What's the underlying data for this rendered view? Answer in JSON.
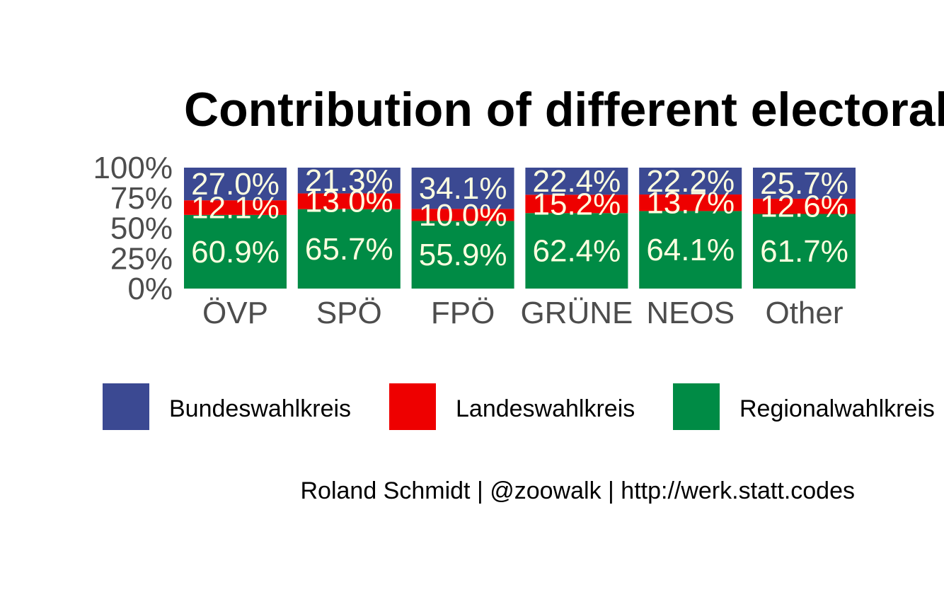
{
  "title": "Contribution of different electoral districts",
  "caption": "Roland Schmidt | @zoowalk | http://werk.statt.codes",
  "chart_data": {
    "type": "bar",
    "stacked": true,
    "categories": [
      "ÖVP",
      "SPÖ",
      "FPÖ",
      "GRÜNE",
      "NEOS",
      "Other"
    ],
    "series": [
      {
        "name": "Regionalwahlkreis",
        "color": "#008B45",
        "values": [
          60.9,
          65.7,
          55.9,
          62.4,
          64.1,
          61.7
        ],
        "labels": [
          "60.9%",
          "65.7%",
          "55.9%",
          "62.4%",
          "64.1%",
          "61.7%"
        ]
      },
      {
        "name": "Landeswahlkreis",
        "color": "#EE0000",
        "values": [
          12.1,
          13.0,
          10.0,
          15.2,
          13.7,
          12.6
        ],
        "labels": [
          "12.1%",
          "13.0%",
          "10.0%",
          "15.2%",
          "13.7%",
          "12.6%"
        ]
      },
      {
        "name": "Bundeswahlkreis",
        "color": "#3B4992",
        "values": [
          27.0,
          21.3,
          34.1,
          22.4,
          22.2,
          25.7
        ],
        "labels": [
          "27.0%",
          "21.3%",
          "34.1%",
          "22.4%",
          "22.2%",
          "25.7%"
        ]
      }
    ],
    "ylim": [
      0,
      100
    ],
    "y_ticks": [
      "0%",
      "25%",
      "50%",
      "75%",
      "100%"
    ],
    "y_tick_values": [
      0,
      25,
      50,
      75,
      100
    ],
    "legend": {
      "position": "bottom",
      "items": [
        {
          "label": "Bundeswahlkreis",
          "color": "#3B4992"
        },
        {
          "label": "Landeswahlkreis",
          "color": "#EE0000"
        },
        {
          "label": "Regionalwahlkreis",
          "color": "#008B45"
        }
      ]
    },
    "grid": false
  }
}
